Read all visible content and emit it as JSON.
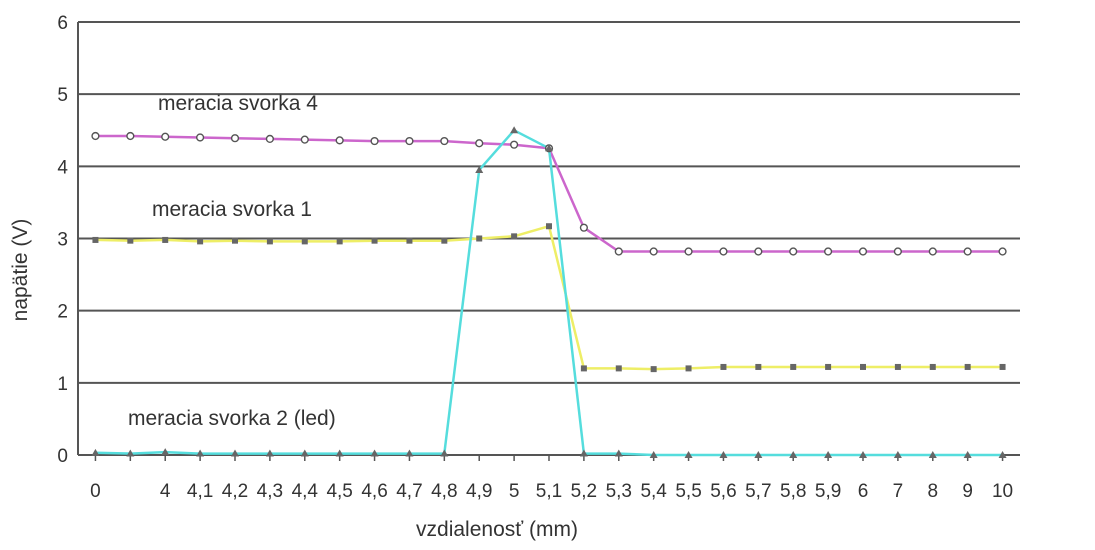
{
  "chart_data": {
    "type": "line",
    "categories": [
      "0",
      "",
      "4",
      "4,1",
      "4,2",
      "4,3",
      "4,4",
      "4,5",
      "4,6",
      "4,7",
      "4,8",
      "4,9",
      "5",
      "5,1",
      "5,2",
      "5,3",
      "5,4",
      "5,5",
      "5,6",
      "5,7",
      "5,8",
      "5,9",
      "6",
      "7",
      "8",
      "9",
      "10"
    ],
    "xlabel": "vzdialenosť (mm)",
    "ylabel": "napätie (V)",
    "ylim": [
      0,
      6
    ],
    "yticks": [
      0,
      1,
      2,
      3,
      4,
      5,
      6
    ],
    "grid": true,
    "series": [
      {
        "name": "meracia svorka 4",
        "color": "#cc66cc",
        "values": [
          4.42,
          4.42,
          4.41,
          4.4,
          4.39,
          4.38,
          4.37,
          4.36,
          4.35,
          4.35,
          4.35,
          4.32,
          4.3,
          4.25,
          3.15,
          2.82,
          2.82,
          2.82,
          2.82,
          2.82,
          2.82,
          2.82,
          2.82,
          2.82,
          2.82,
          2.82,
          2.82
        ]
      },
      {
        "name": "meracia svorka 1",
        "color": "#eeee66",
        "values": [
          2.98,
          2.97,
          2.98,
          2.96,
          2.97,
          2.96,
          2.96,
          2.96,
          2.97,
          2.97,
          2.97,
          3.0,
          3.03,
          3.17,
          1.2,
          1.2,
          1.19,
          1.2,
          1.22,
          1.22,
          1.22,
          1.22,
          1.22,
          1.22,
          1.22,
          1.22,
          1.22
        ]
      },
      {
        "name": "meracia svorka 2 (led)",
        "color": "#55dddd",
        "values": [
          0.03,
          0.02,
          0.04,
          0.02,
          0.02,
          0.02,
          0.02,
          0.02,
          0.02,
          0.02,
          0.02,
          3.95,
          4.5,
          4.25,
          0.02,
          0.02,
          0.0,
          0.0,
          0.0,
          0.0,
          0.0,
          0.0,
          0.0,
          0.0,
          0.0,
          0.0,
          0.0
        ]
      }
    ]
  }
}
